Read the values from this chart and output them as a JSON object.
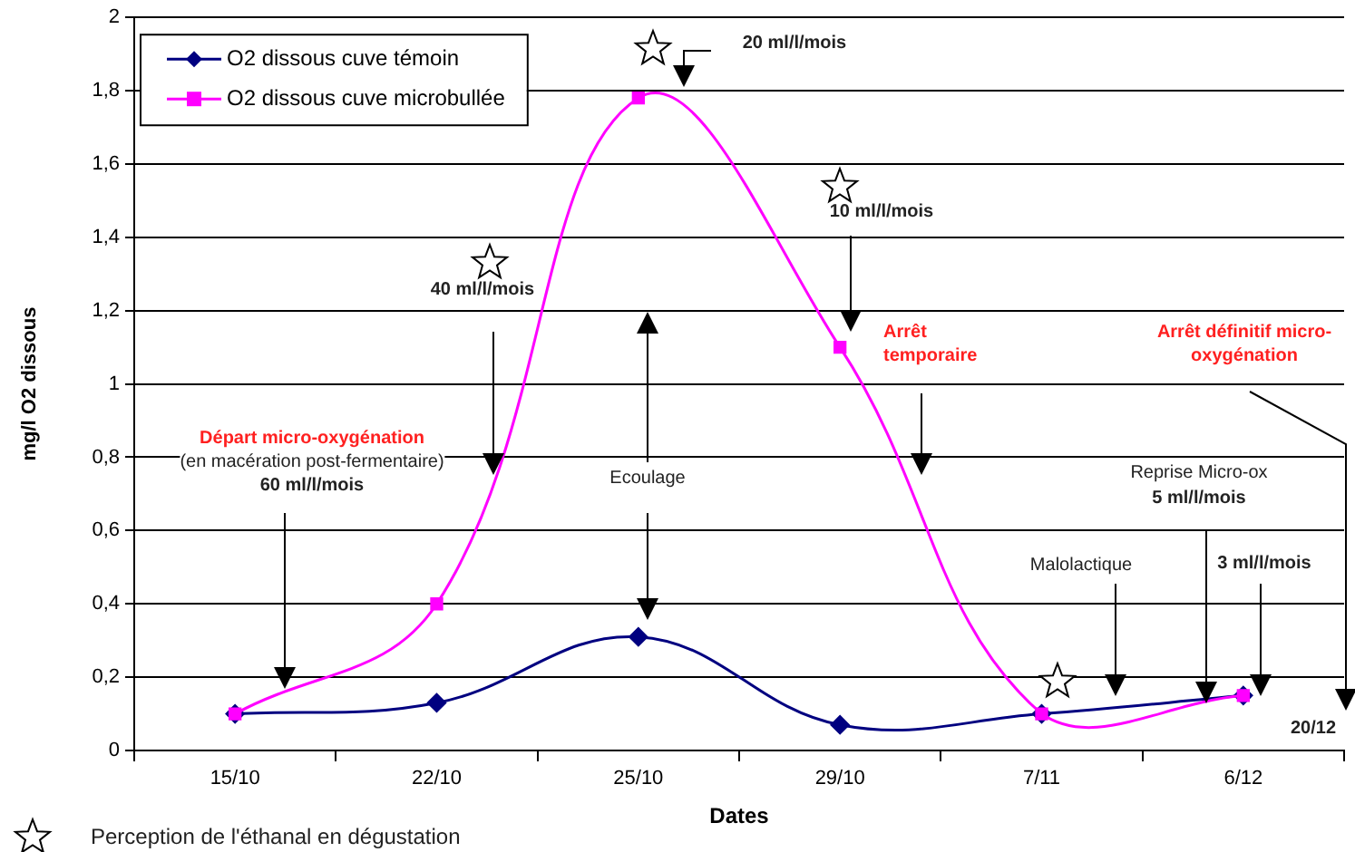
{
  "chart_data": {
    "type": "line",
    "xlabel": "Dates",
    "ylabel": "mg/l O2 dissous",
    "categories": [
      "15/10",
      "22/10",
      "25/10",
      "29/10",
      "7/11",
      "6/12"
    ],
    "series": [
      {
        "name": "O2 dissous cuve témoin",
        "color": "#000080",
        "marker": "diamond",
        "values": [
          0.1,
          0.13,
          0.31,
          0.07,
          0.1,
          0.15
        ]
      },
      {
        "name": "O2 dissous cuve microbullée",
        "color": "#ff00ff",
        "marker": "square",
        "values": [
          0.1,
          0.4,
          1.78,
          1.1,
          0.1,
          0.15
        ]
      }
    ],
    "ylim": [
      0,
      2
    ],
    "yticks": [
      0,
      {
        "value": 0.2,
        "label": "0,2"
      },
      {
        "value": 0.4,
        "label": "0,4"
      },
      {
        "value": 0.6,
        "label": "0,6"
      },
      {
        "value": 0.8,
        "label": "0,8"
      },
      1,
      {
        "value": 1.2,
        "label": "1,2"
      },
      {
        "value": 1.4,
        "label": "1,4"
      },
      {
        "value": 1.6,
        "label": "1,6"
      },
      {
        "value": 1.8,
        "label": "1,8"
      },
      2
    ],
    "grid": "y",
    "legend": "top left",
    "line_style": "solid",
    "annotations": [
      "Départ micro-oxygénation",
      "(en macération post-fermentaire)",
      "60 ml/l/mois",
      "40 ml/l/mois",
      "20 ml/l/mois",
      "10 ml/l/mois",
      "Ecoulage",
      "Arrêt temporaire",
      "Arrêt définitif micro-oxygénation",
      "Malolactique",
      "Reprise Micro-ox",
      "5 ml/l/mois",
      "3 ml/l/mois",
      "20/12",
      "Perception de l'éthanal en dégustation"
    ]
  }
}
